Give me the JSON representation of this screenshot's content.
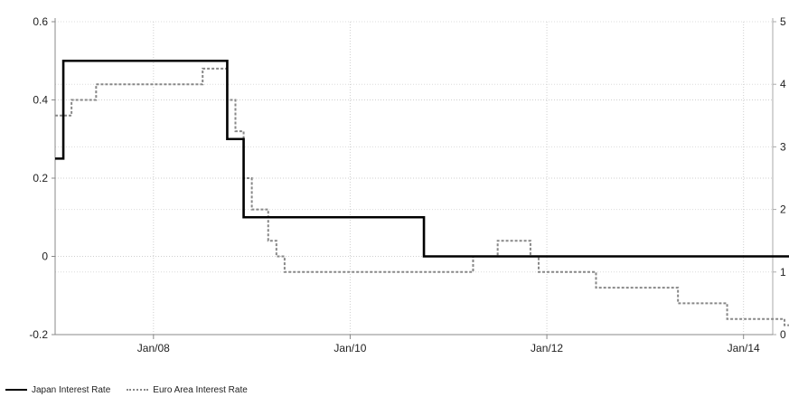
{
  "chart_data": {
    "type": "line",
    "title": "",
    "xlabel": "",
    "ylabel": "",
    "x_ticks": [
      "Jan/08",
      "Jan/10",
      "Jan/12",
      "Jan/14"
    ],
    "left_axis": {
      "range": [
        -0.2,
        0.6
      ],
      "ticks": [
        "0.6",
        "0.4",
        "0.2",
        "0",
        "-0.2"
      ]
    },
    "right_axis": {
      "range": [
        0,
        5
      ],
      "ticks": [
        "5",
        "4",
        "3",
        "2",
        "1",
        "0"
      ]
    },
    "grid": true,
    "legend_position": "bottom-left",
    "series": [
      {
        "name": "Japan Interest Rate",
        "axis": "left",
        "style": "solid",
        "color": "#000000",
        "step": true,
        "points": [
          [
            "2007-01",
            0.25
          ],
          [
            "2007-02",
            0.5
          ],
          [
            "2008-10",
            0.3
          ],
          [
            "2008-12",
            0.1
          ],
          [
            "2010-10",
            0.0
          ],
          [
            "2015-02",
            0.0
          ]
        ]
      },
      {
        "name": "Euro Area Interest Rate",
        "axis": "right",
        "style": "dotted",
        "color": "#888888",
        "step": true,
        "points": [
          [
            "2007-01",
            3.5
          ],
          [
            "2007-03",
            3.75
          ],
          [
            "2007-06",
            4.0
          ],
          [
            "2008-07",
            4.25
          ],
          [
            "2008-10",
            3.75
          ],
          [
            "2008-11",
            3.25
          ],
          [
            "2008-12",
            2.5
          ],
          [
            "2009-01",
            2.0
          ],
          [
            "2009-03",
            1.5
          ],
          [
            "2009-04",
            1.25
          ],
          [
            "2009-05",
            1.0
          ],
          [
            "2011-04",
            1.25
          ],
          [
            "2011-07",
            1.5
          ],
          [
            "2011-11",
            1.25
          ],
          [
            "2011-12",
            1.0
          ],
          [
            "2012-07",
            0.75
          ],
          [
            "2013-05",
            0.5
          ],
          [
            "2013-11",
            0.25
          ],
          [
            "2014-06",
            0.15
          ],
          [
            "2014-09",
            0.05
          ],
          [
            "2015-02",
            0.05
          ]
        ]
      }
    ]
  }
}
